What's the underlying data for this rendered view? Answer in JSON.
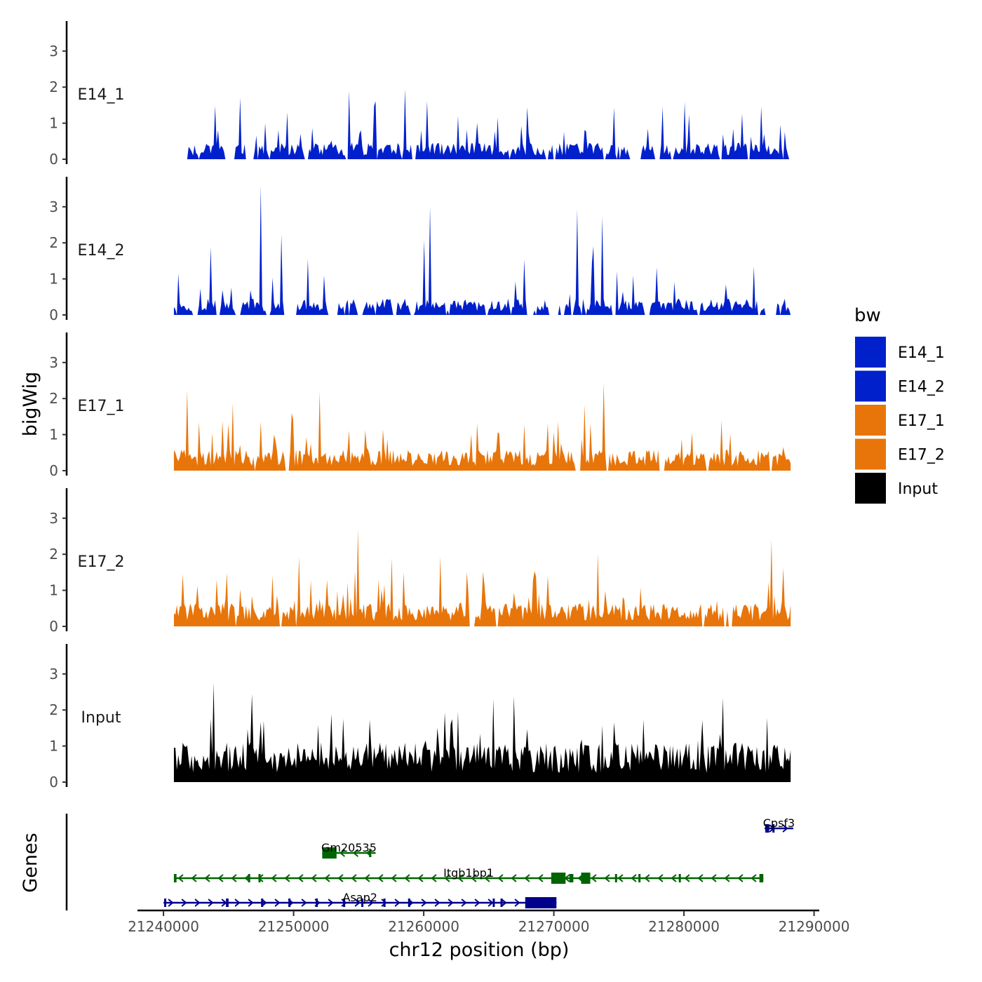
{
  "chart_data": {
    "type": "area",
    "y_axis_title": "bigWig",
    "x_axis_title": "chr12 position (bp)",
    "genes_axis_title": "Genes",
    "ylim": [
      0,
      3.8
    ],
    "y_ticks": [
      0,
      1,
      2,
      3
    ],
    "xlim": [
      21238000,
      21290400
    ],
    "x_ticks": [
      21240000,
      21250000,
      21260000,
      21270000,
      21280000,
      21290000
    ],
    "x_tick_labels": [
      "21240000",
      "21250000",
      "21260000",
      "21270000",
      "21280000",
      "21290000"
    ],
    "signal_range": [
      21240800,
      21288200
    ],
    "legend": {
      "title": "bw",
      "entries": [
        {
          "label": "E14_1",
          "color": "#0020CC"
        },
        {
          "label": "E14_2",
          "color": "#0020CC"
        },
        {
          "label": "E17_1",
          "color": "#E8750A"
        },
        {
          "label": "E17_2",
          "color": "#E8750A"
        },
        {
          "label": "Input",
          "color": "#000000"
        }
      ]
    },
    "series": [
      {
        "name": "E14_1",
        "color": "#0020CC",
        "seed": 11,
        "peak": 1.95,
        "base": 0.35,
        "zero_fraction": 0.35,
        "spikiness": 0.65
      },
      {
        "name": "E14_2",
        "color": "#0020CC",
        "seed": 23,
        "peak": 3.6,
        "base": 0.35,
        "zero_fraction": 0.4,
        "spikiness": 0.7
      },
      {
        "name": "E17_1",
        "color": "#E8750A",
        "seed": 37,
        "peak": 2.45,
        "base": 0.45,
        "zero_fraction": 0.12,
        "spikiness": 0.6
      },
      {
        "name": "E17_2",
        "color": "#E8750A",
        "seed": 41,
        "peak": 2.7,
        "base": 0.5,
        "zero_fraction": 0.1,
        "spikiness": 0.6
      },
      {
        "name": "Input",
        "color": "#000000",
        "seed": 53,
        "peak": 2.75,
        "base": 0.85,
        "zero_fraction": 0.0,
        "spikiness": 0.45
      }
    ],
    "genes": [
      {
        "name": "Cpsf3",
        "start": 21286200,
        "end": 21288400,
        "strand": "+",
        "color": "#00008B",
        "row": 0,
        "exons": [
          [
            21286250,
            21286550
          ],
          [
            21286800,
            21286950
          ]
        ]
      },
      {
        "name": "Gm20535",
        "start": 21252200,
        "end": 21256300,
        "strand": "-",
        "color": "#006400",
        "row": 1,
        "exons": [
          [
            21252200,
            21253300
          ],
          [
            21255800,
            21255900
          ]
        ]
      },
      {
        "name": "Itgb1bp1",
        "start": 21240800,
        "end": 21286100,
        "strand": "-",
        "color": "#006400",
        "row": 2,
        "exons": [
          [
            21240800,
            21241000
          ],
          [
            21246500,
            21246600
          ],
          [
            21247300,
            21247400
          ],
          [
            21269800,
            21270900
          ],
          [
            21271200,
            21271500
          ],
          [
            21272100,
            21272800
          ],
          [
            21274700,
            21274800
          ],
          [
            21276500,
            21276600
          ],
          [
            21279600,
            21279700
          ],
          [
            21285800,
            21286100
          ]
        ]
      },
      {
        "name": "Asap2",
        "start": 21240000,
        "end": 21270200,
        "strand": "+",
        "color": "#00008B",
        "row": 3,
        "exons": [
          [
            21240050,
            21240200
          ],
          [
            21244800,
            21245000
          ],
          [
            21247500,
            21247600
          ],
          [
            21249600,
            21249700
          ],
          [
            21251700,
            21251800
          ],
          [
            21253800,
            21253900
          ],
          [
            21255200,
            21255300
          ],
          [
            21256900,
            21257000
          ],
          [
            21258800,
            21258950
          ],
          [
            21265300,
            21265400
          ],
          [
            21265900,
            21266000
          ],
          [
            21267800,
            21270200
          ]
        ]
      }
    ]
  }
}
